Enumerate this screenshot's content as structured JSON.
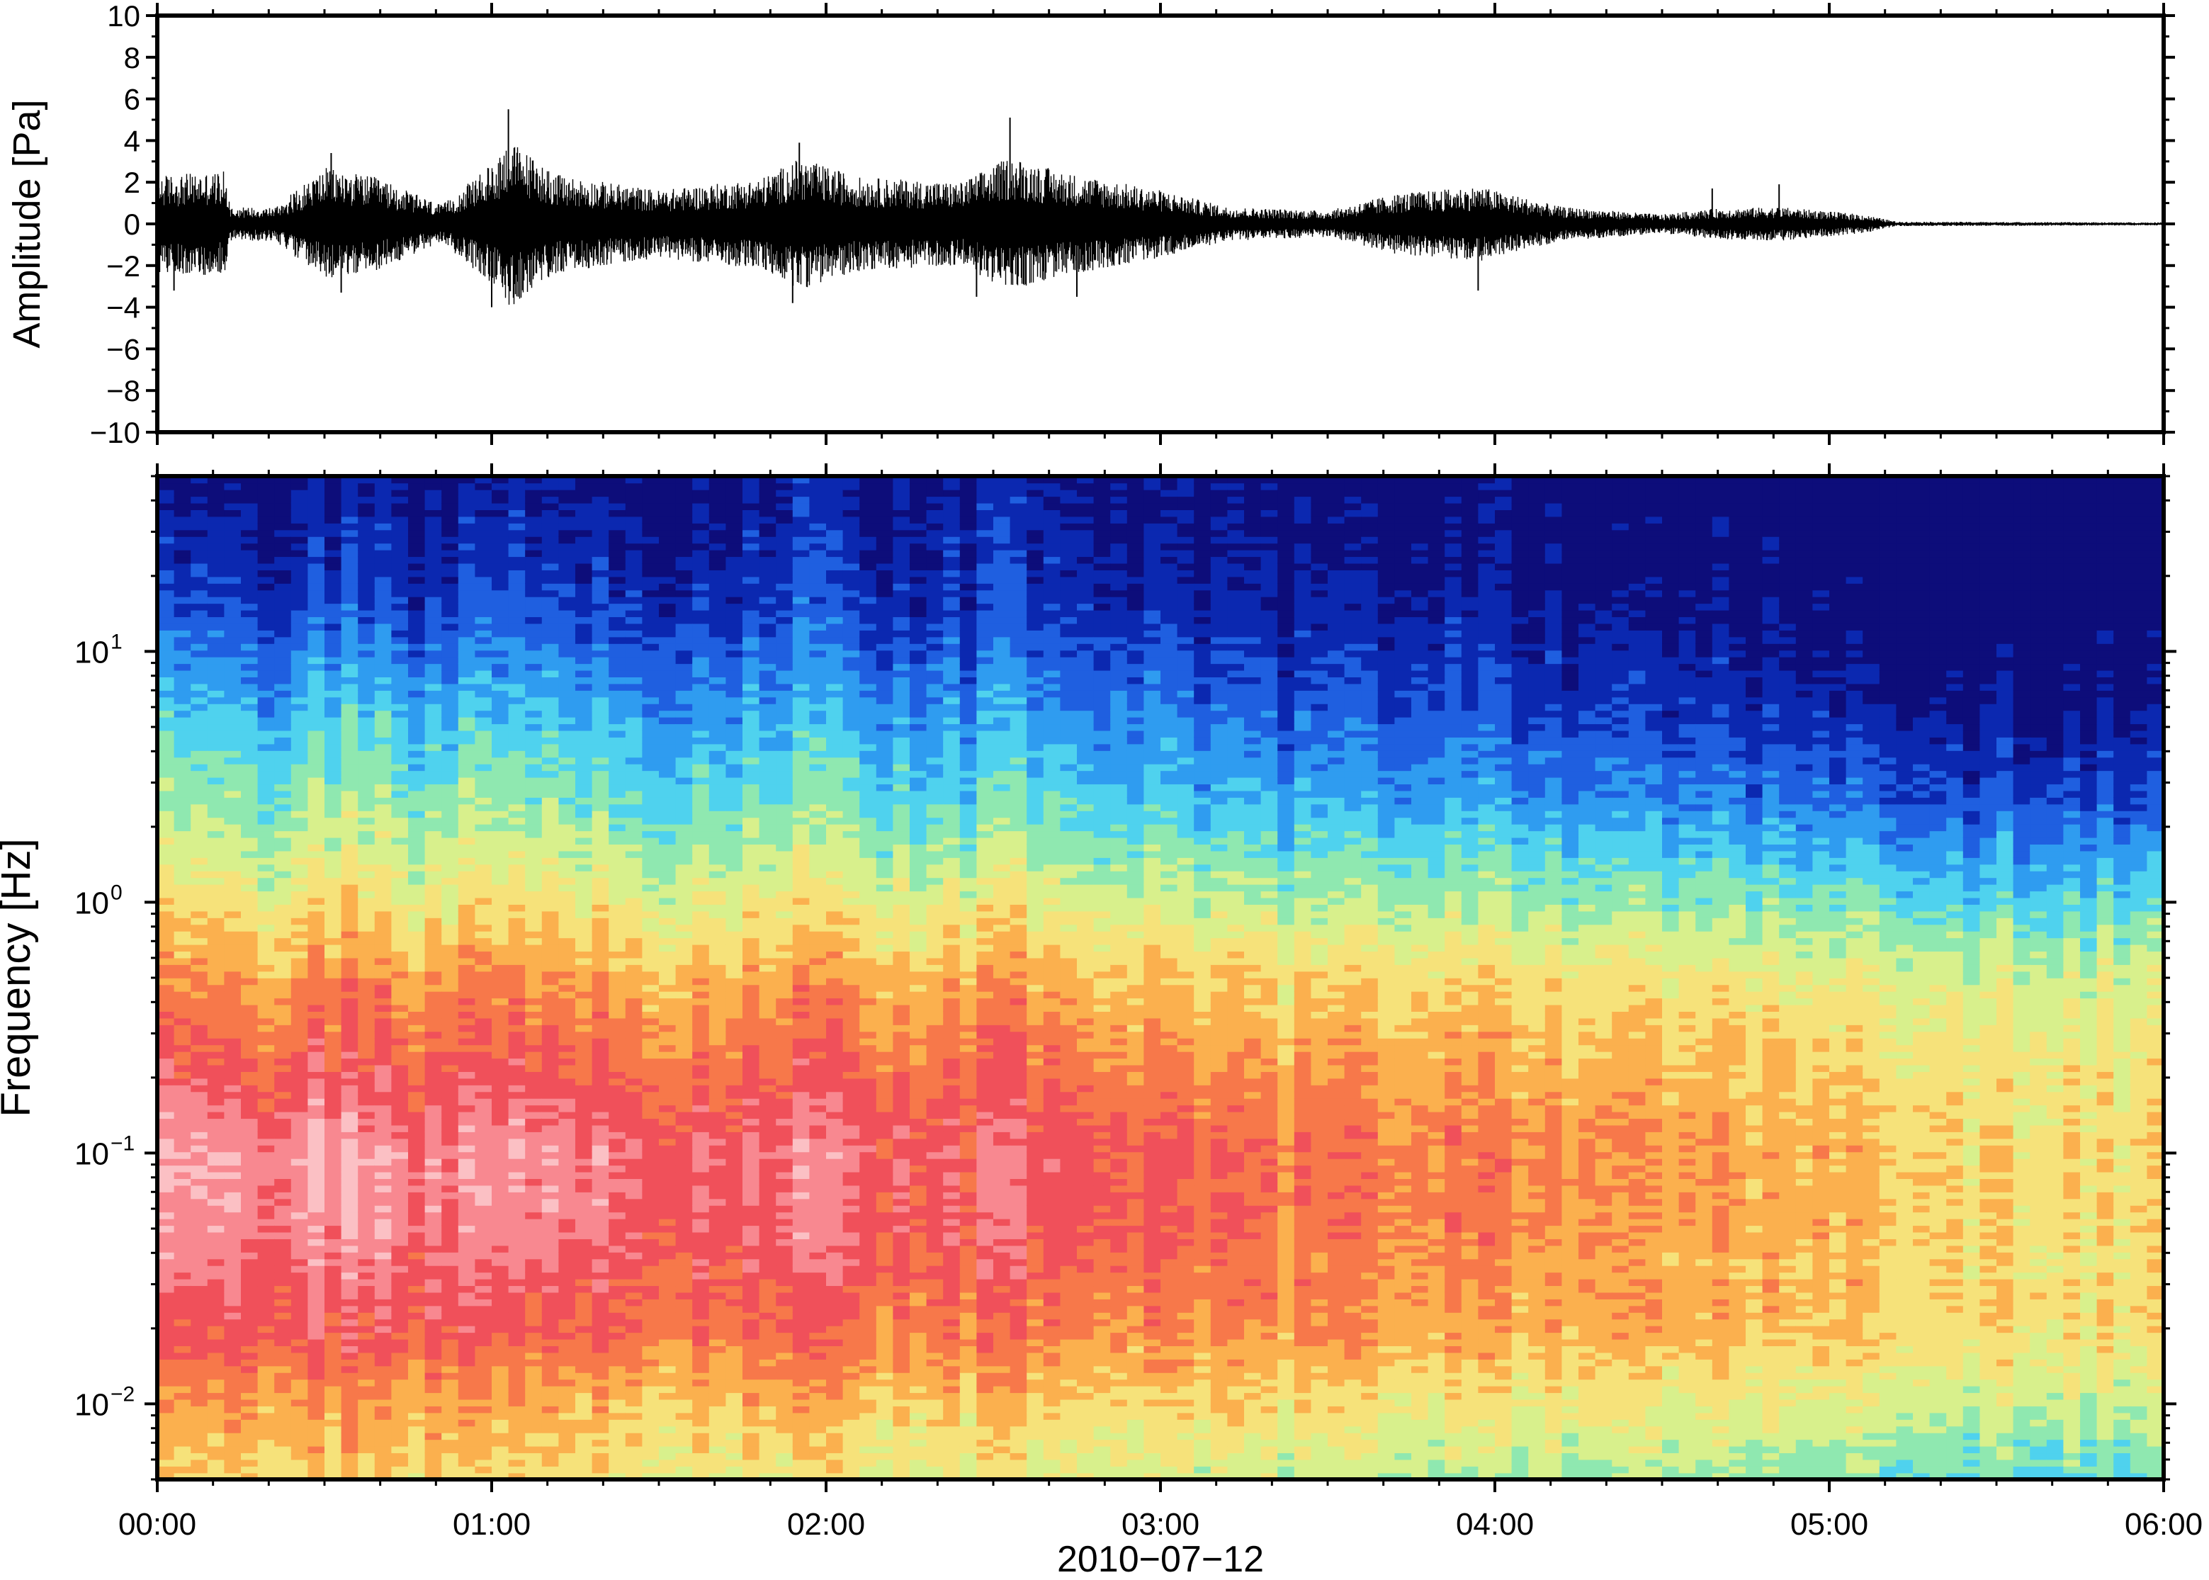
{
  "chart_data": [
    {
      "type": "line",
      "ylabel": "Amplitude [Pa]",
      "ylim": [
        -10,
        10
      ],
      "yticks": [
        10,
        8,
        6,
        4,
        2,
        0,
        -2,
        -4,
        -6,
        -8,
        -10
      ],
      "ytick_labels": [
        "10",
        "8",
        "6",
        "4",
        "2",
        "0",
        "−2",
        "−4",
        "−6",
        "−8",
        "−10"
      ],
      "xlim": [
        "00:00",
        "06:00"
      ],
      "grid": false,
      "series": [
        {
          "color": "#000000",
          "envelope_hours": [
            0,
            0.2,
            0.22,
            0.35,
            0.5,
            0.65,
            0.85,
            1.0,
            1.05,
            1.2,
            1.5,
            1.8,
            1.92,
            2.1,
            2.4,
            2.55,
            2.7,
            3.0,
            3.2,
            3.5,
            3.7,
            3.95,
            4.2,
            4.5,
            4.65,
            4.85,
            5.1,
            5.2,
            6.0
          ],
          "envelope_pa": [
            2.6,
            2.8,
            0.9,
            0.9,
            3.0,
            2.5,
            1.0,
            3.2,
            4.5,
            2.6,
            1.8,
            2.4,
            3.5,
            2.5,
            2.2,
            3.6,
            2.8,
            1.8,
            0.9,
            0.7,
            1.6,
            2.0,
            0.9,
            0.5,
            0.8,
            0.9,
            0.5,
            0.12,
            0.08
          ],
          "peaks": [
            {
              "hour": 0.05,
              "pa": -3.2
            },
            {
              "hour": 0.52,
              "pa": 3.4
            },
            {
              "hour": 0.55,
              "pa": -3.3
            },
            {
              "hour": 1.05,
              "pa": 5.5
            },
            {
              "hour": 1.0,
              "pa": -4.0
            },
            {
              "hour": 1.92,
              "pa": 3.9
            },
            {
              "hour": 1.9,
              "pa": -3.8
            },
            {
              "hour": 2.55,
              "pa": 5.1
            },
            {
              "hour": 2.45,
              "pa": -3.5
            },
            {
              "hour": 2.75,
              "pa": -3.5
            },
            {
              "hour": 3.95,
              "pa": -3.2
            },
            {
              "hour": 4.65,
              "pa": 1.7
            },
            {
              "hour": 4.85,
              "pa": 1.9
            }
          ]
        }
      ]
    },
    {
      "type": "heatmap",
      "ylabel": "Frequency [Hz]",
      "xlabel": "2010−07−12",
      "yscale": "log",
      "ylim": [
        0.005,
        50
      ],
      "yticks": [
        0.01,
        0.1,
        1,
        10
      ],
      "ytick_labels": [
        {
          "base": "10",
          "exp": "−2"
        },
        {
          "base": "10",
          "exp": "−1"
        },
        {
          "base": "10",
          "exp": "0"
        },
        {
          "base": "10",
          "exp": "1"
        }
      ],
      "xticks": [
        "00:00",
        "01:00",
        "02:00",
        "03:00",
        "04:00",
        "05:00",
        "06:00"
      ],
      "xlim_hours": [
        0,
        6
      ],
      "colormap": [
        "#0d0d7a",
        "#0b28b0",
        "#1f5fe0",
        "#2f9cf0",
        "#4fd2ee",
        "#8fe8b0",
        "#d8f08c",
        "#f6e27a",
        "#fbb04e",
        "#f7784a",
        "#f0505a",
        "#f88890",
        "#fbc0c4"
      ],
      "colorbar": false,
      "power_db_profile": {
        "log10_freq": [
          -2.3,
          -2.0,
          -1.7,
          -1.3,
          -1.0,
          -0.7,
          -0.3,
          0.0,
          0.4,
          0.8,
          1.2,
          1.7
        ],
        "level_at_00h": [
          0.62,
          0.7,
          0.84,
          0.93,
          0.96,
          0.84,
          0.7,
          0.58,
          0.44,
          0.3,
          0.12,
          0.0
        ],
        "level_at_06h": [
          0.38,
          0.5,
          0.6,
          0.64,
          0.64,
          0.62,
          0.55,
          0.4,
          0.18,
          0.05,
          0.0,
          0.0
        ]
      }
    }
  ]
}
